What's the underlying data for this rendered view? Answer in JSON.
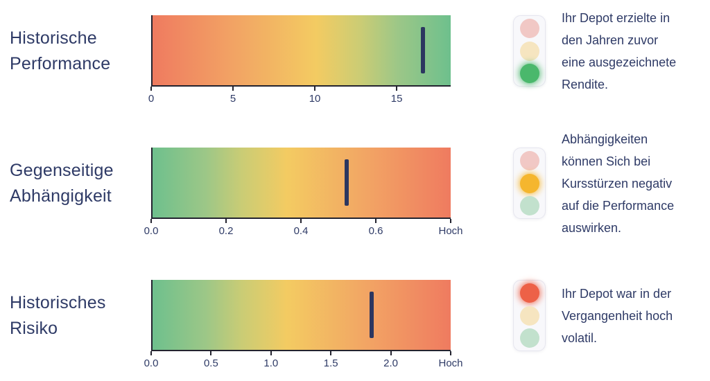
{
  "colors": {
    "navy": "#2e3a66",
    "marker": "#2c3760",
    "axis": "#23232f",
    "active_red": "#ed6147",
    "active_yellow": "#f5b62e",
    "active_green": "#4ab86c",
    "muted_red": "#f1c8c5",
    "muted_yellow": "#f6e5c0",
    "muted_green": "#c2e1cd",
    "gradient_red_green": [
      "#ef7b60 0%",
      "#f2a364 27%",
      "#f3cb62 55%",
      "#cacc75 70%",
      "#9dc787 82%",
      "#6ec08d 100%"
    ],
    "gradient_green_red": [
      "#6ec08d 0%",
      "#9dc787 18%",
      "#cacc75 30%",
      "#f3cb62 45%",
      "#f2a364 73%",
      "#ef7b60 100%"
    ]
  },
  "chart_data": [
    {
      "type": "gauge",
      "title": "Historische Performance",
      "title_lines": "Historische\nPerformance",
      "gradient": "red_green",
      "xlim": [
        0,
        18.3
      ],
      "marker": 16.6,
      "ticks": [
        {
          "label": "0",
          "value": 0
        },
        {
          "label": "5",
          "value": 5
        },
        {
          "label": "10",
          "value": 10
        },
        {
          "label": "15",
          "value": 15
        }
      ],
      "traffic_light": {
        "lamps": [
          "red",
          "yellow",
          "green"
        ],
        "active": "green"
      },
      "annotation": "Ihr Depot erzielte in\nden Jahren zuvor\neine ausgezeichnete\nRendite."
    },
    {
      "type": "gauge",
      "title": "Gegenseitige Abhängigkeit",
      "title_lines": "Gegenseitige\nAbhängigkeit",
      "gradient": "green_red",
      "xlim": [
        0,
        0.8
      ],
      "marker": 0.52,
      "ticks": [
        {
          "label": "0.0",
          "value": 0
        },
        {
          "label": "0.2",
          "value": 0.2
        },
        {
          "label": "0.4",
          "value": 0.4
        },
        {
          "label": "0.6",
          "value": 0.6
        },
        {
          "label": "Hoch",
          "value": 0.8
        }
      ],
      "traffic_light": {
        "lamps": [
          "red",
          "yellow",
          "green"
        ],
        "active": "yellow"
      },
      "annotation": "Abhängigkeiten\nkönnen Sich bei\nKursstürzen negativ\nauf die Performance\nauswirken."
    },
    {
      "type": "gauge",
      "title": "Historisches Risiko",
      "title_lines": "Historisches\nRisiko",
      "gradient": "green_red",
      "xlim": [
        0,
        2.5
      ],
      "marker": 1.84,
      "ticks": [
        {
          "label": "0.0",
          "value": 0
        },
        {
          "label": "0.5",
          "value": 0.5
        },
        {
          "label": "1.0",
          "value": 1.0
        },
        {
          "label": "1.5",
          "value": 1.5
        },
        {
          "label": "2.0",
          "value": 2.0
        },
        {
          "label": "Hoch",
          "value": 2.5
        }
      ],
      "traffic_light": {
        "lamps": [
          "red",
          "yellow",
          "green"
        ],
        "active": "red"
      },
      "annotation": "Ihr Depot war in der\nVergangenheit hoch\nvolatil."
    }
  ]
}
